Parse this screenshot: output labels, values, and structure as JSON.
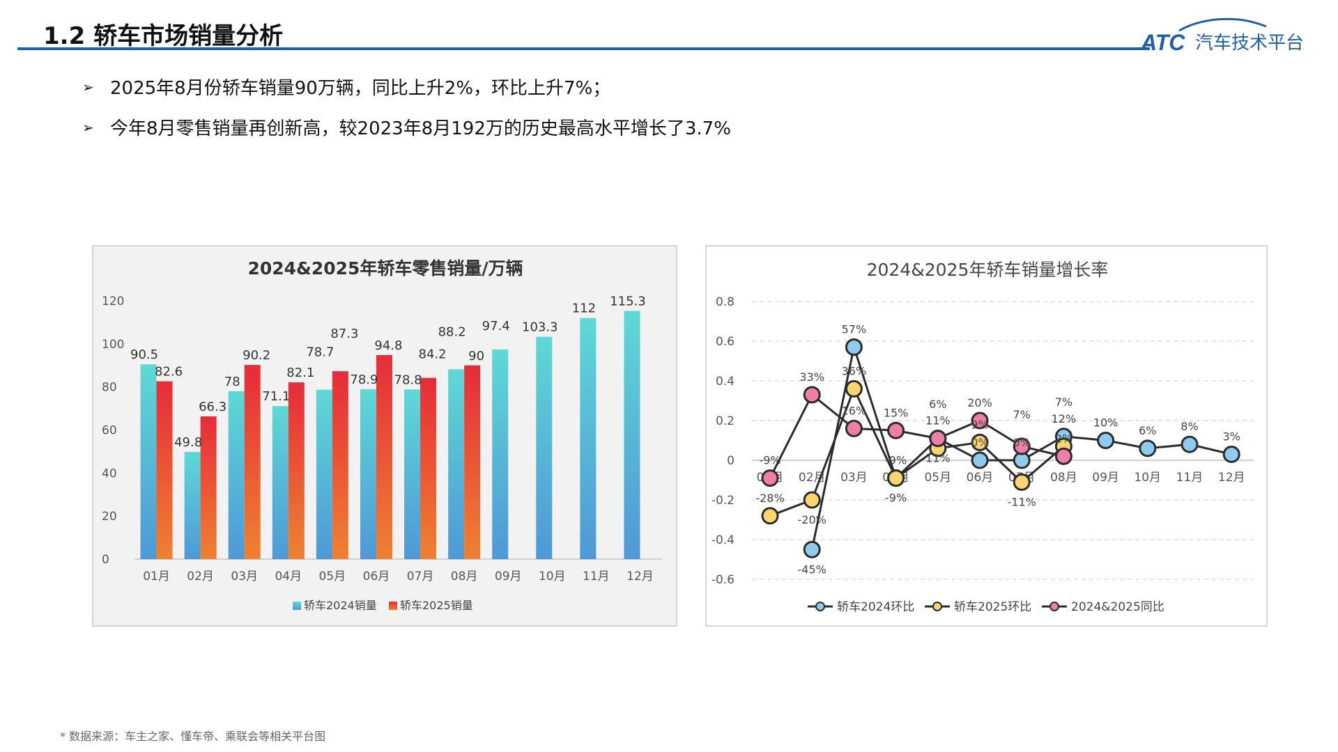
{
  "header": {
    "title": "1.2 轿车市场销量分析",
    "logo_text": "ATC汽车技术平台",
    "brand_color": "#1f5fa8"
  },
  "bullets": [
    "2025年8月份轿车销量90万辆，同比上升2%，环比上升7%；",
    "今年8月零售销量再创新高，较2023年8月192万的历史最高水平增长了3.7%"
  ],
  "footer": "* 数据来源：车主之家、懂车帝、乘联会等相关平台图",
  "chart_data": [
    {
      "type": "bar",
      "title": "2024&2025年轿车零售销量/万辆",
      "categories": [
        "01月",
        "02月",
        "03月",
        "04月",
        "05月",
        "06月",
        "07月",
        "08月",
        "09月",
        "10月",
        "11月",
        "12月"
      ],
      "ylim": [
        0,
        120
      ],
      "yticks": [
        0,
        20,
        40,
        60,
        80,
        100,
        120
      ],
      "grid": false,
      "legend": "bottom",
      "series": [
        {
          "name": "轿车2024销量",
          "color": "#4fb8d8",
          "values": [
            90.5,
            49.8,
            78,
            71.1,
            78.7,
            78.9,
            78.8,
            88.2,
            97.4,
            103.3,
            112,
            115.3
          ]
        },
        {
          "name": "轿车2025销量",
          "color": "#ec4a35",
          "values": [
            82.6,
            66.3,
            90.2,
            82.1,
            87.3,
            94.8,
            84.2,
            90,
            null,
            null,
            null,
            null
          ]
        }
      ]
    },
    {
      "type": "line",
      "title": "2024&2025年轿车销量增长率",
      "categories": [
        "01月",
        "02月",
        "03月",
        "04月",
        "05月",
        "06月",
        "07月",
        "08月",
        "09月",
        "10月",
        "11月",
        "12月"
      ],
      "ylim": [
        -0.6,
        0.8
      ],
      "yticks": [
        "-0.6",
        "-0.4",
        "-0.2",
        "0",
        "0.2",
        "0.4",
        "0.6",
        "0.8"
      ],
      "grid": true,
      "legend": "bottom",
      "series": [
        {
          "name": "轿车2024环比",
          "color": "#8ecbee",
          "values": [
            null,
            -0.45,
            0.57,
            -0.09,
            0.11,
            0.0,
            0.0,
            0.12,
            0.1,
            0.06,
            0.08,
            0.03
          ],
          "labels": [
            null,
            "-45%",
            "57%",
            "-9%",
            "11%",
            "0%",
            "0%",
            "12%",
            "10%",
            "6%",
            "8%",
            "3%"
          ]
        },
        {
          "name": "轿车2025环比",
          "color": "#fbd571",
          "values": [
            -0.28,
            -0.2,
            0.36,
            -0.09,
            0.06,
            0.09,
            -0.11,
            0.07,
            null,
            null,
            null,
            null
          ],
          "labels": [
            "-28%",
            "-20%",
            "36%",
            "-9%",
            "6%",
            "9%",
            "-11%",
            "7%",
            null,
            null,
            null,
            null
          ]
        },
        {
          "name": "2024&2025同比",
          "color": "#ee7fa8",
          "values": [
            -0.09,
            0.33,
            0.16,
            0.15,
            0.11,
            0.2,
            0.07,
            0.02,
            null,
            null,
            null,
            null
          ],
          "labels": [
            "-9%",
            "33%",
            "16%",
            "15%",
            "11%",
            "20%",
            "7%",
            "2%",
            null,
            null,
            null,
            null
          ]
        }
      ]
    }
  ]
}
